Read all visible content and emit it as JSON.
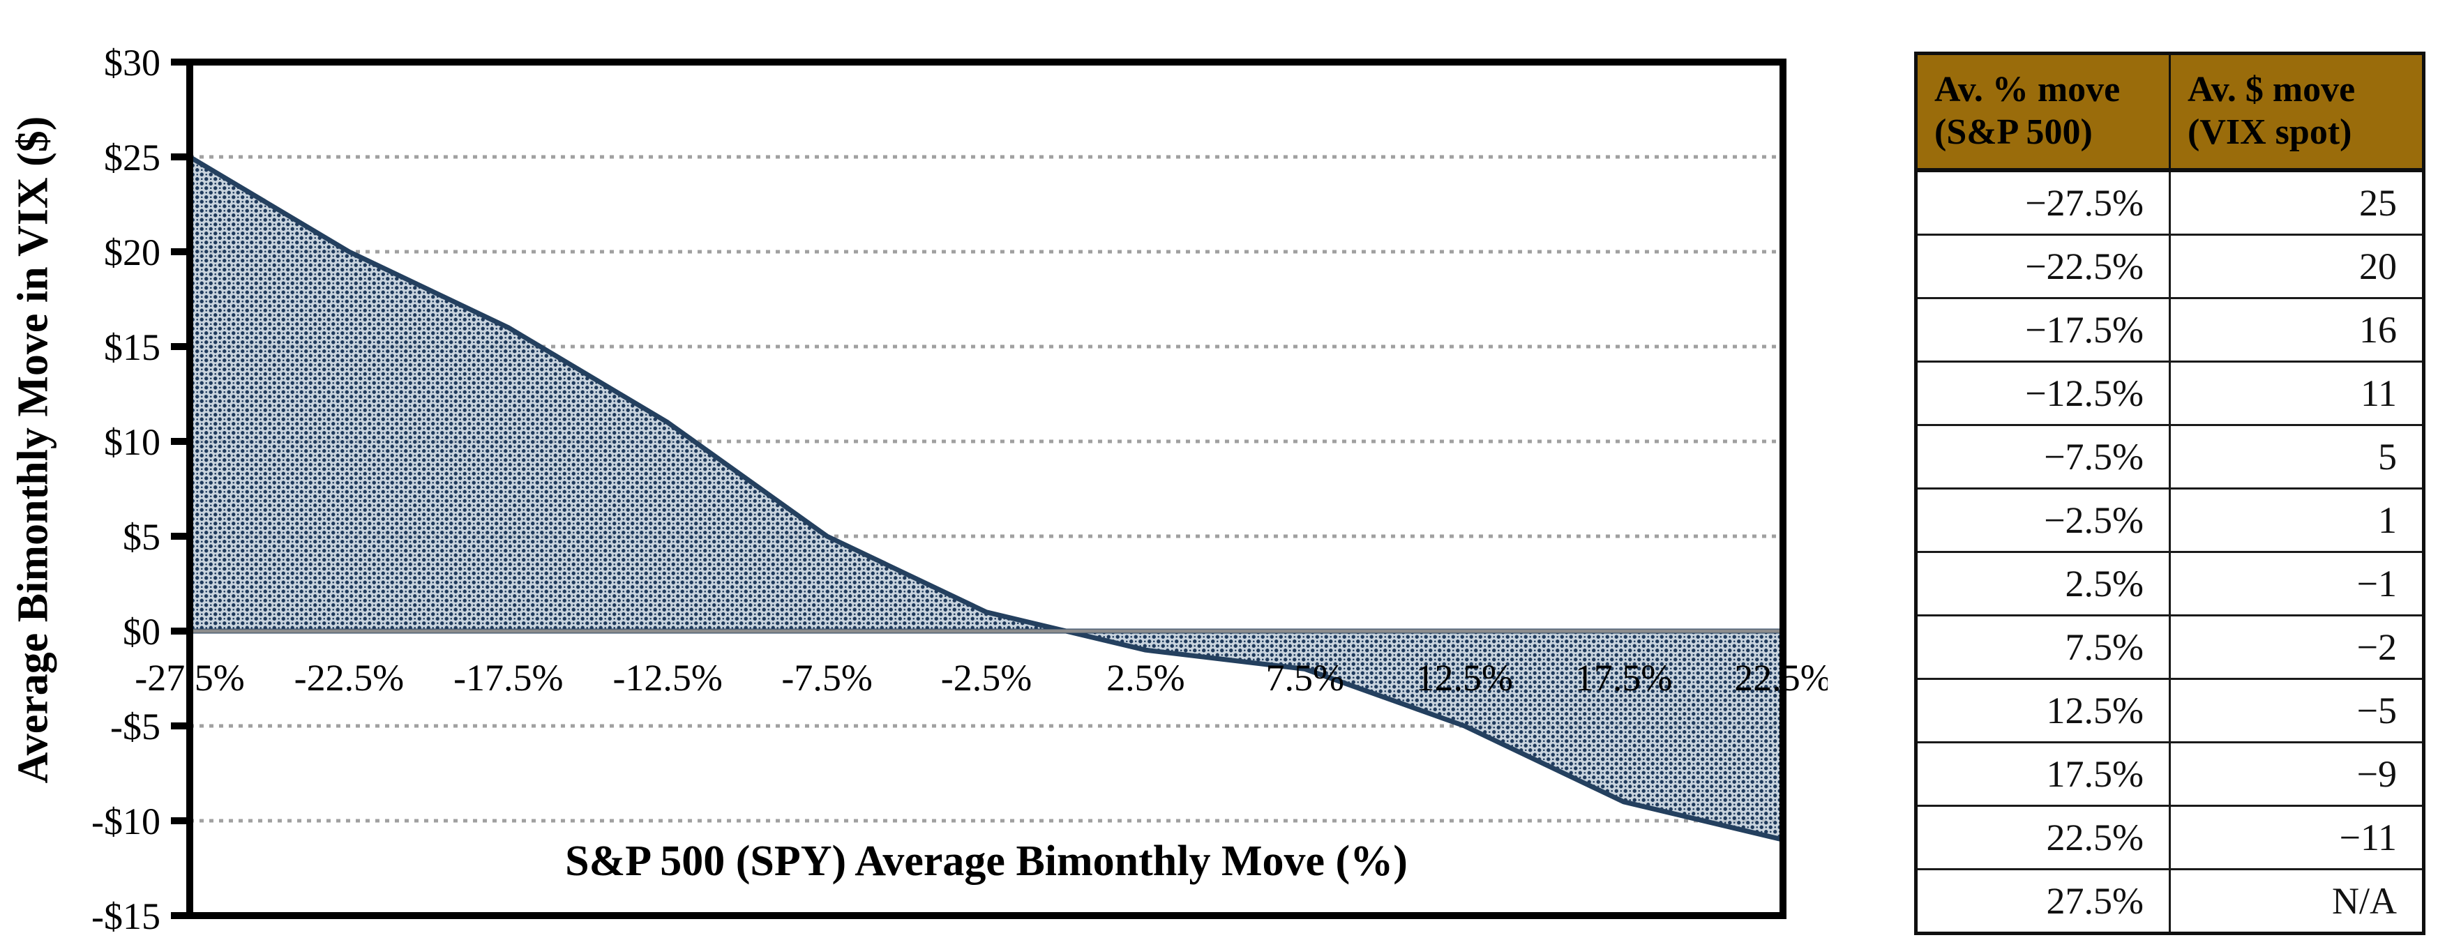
{
  "chart_data": {
    "type": "area",
    "title": "",
    "xlabel": "S&P 500 (SPY) Average Bimonthly Move (%)",
    "ylabel": "Average Bimonthly Move in VIX ($)",
    "categories": [
      "-27.5%",
      "-22.5%",
      "-17.5%",
      "-12.5%",
      "-7.5%",
      "-2.5%",
      "2.5%",
      "7.5%",
      "12.5%",
      "17.5%",
      "22.5%"
    ],
    "values": [
      25,
      20,
      16,
      11,
      5,
      1,
      -1,
      -2,
      -5,
      -9,
      -11
    ],
    "ylim": [
      -15,
      30
    ],
    "ytick_step": 5,
    "ytick_labels": [
      "$30",
      "$25",
      "$20",
      "$15",
      "$10",
      "$5",
      "$0",
      "-$5",
      "-$10",
      "-$15"
    ],
    "grid": "dotted horizontal gridlines every $5, solid gray line at $0",
    "legend": "none",
    "fill_pattern": "navy dot lattice over translucent light blue",
    "line_color": "#24405F",
    "dot_color": "#1F3A5C",
    "pattern_base_color": "#BCC9D6",
    "zero_axis_color": "#8C8C8C",
    "gridline_color": "#A0A0A0",
    "border_color": "#000000"
  },
  "table": {
    "header": [
      {
        "line1": "Av. % move",
        "line2": "(S&P 500)"
      },
      {
        "line1": "Av. $ move",
        "line2": "(VIX spot)"
      }
    ],
    "header_bg": "#9A6C0B",
    "rows": [
      [
        "−27.5%",
        "25"
      ],
      [
        "−22.5%",
        "20"
      ],
      [
        "−17.5%",
        "16"
      ],
      [
        "−12.5%",
        "11"
      ],
      [
        "−7.5%",
        "5"
      ],
      [
        "−2.5%",
        "1"
      ],
      [
        "2.5%",
        "−1"
      ],
      [
        "7.5%",
        "−2"
      ],
      [
        "12.5%",
        "−5"
      ],
      [
        "17.5%",
        "−9"
      ],
      [
        "22.5%",
        "−11"
      ],
      [
        "27.5%",
        "N/A"
      ]
    ]
  }
}
